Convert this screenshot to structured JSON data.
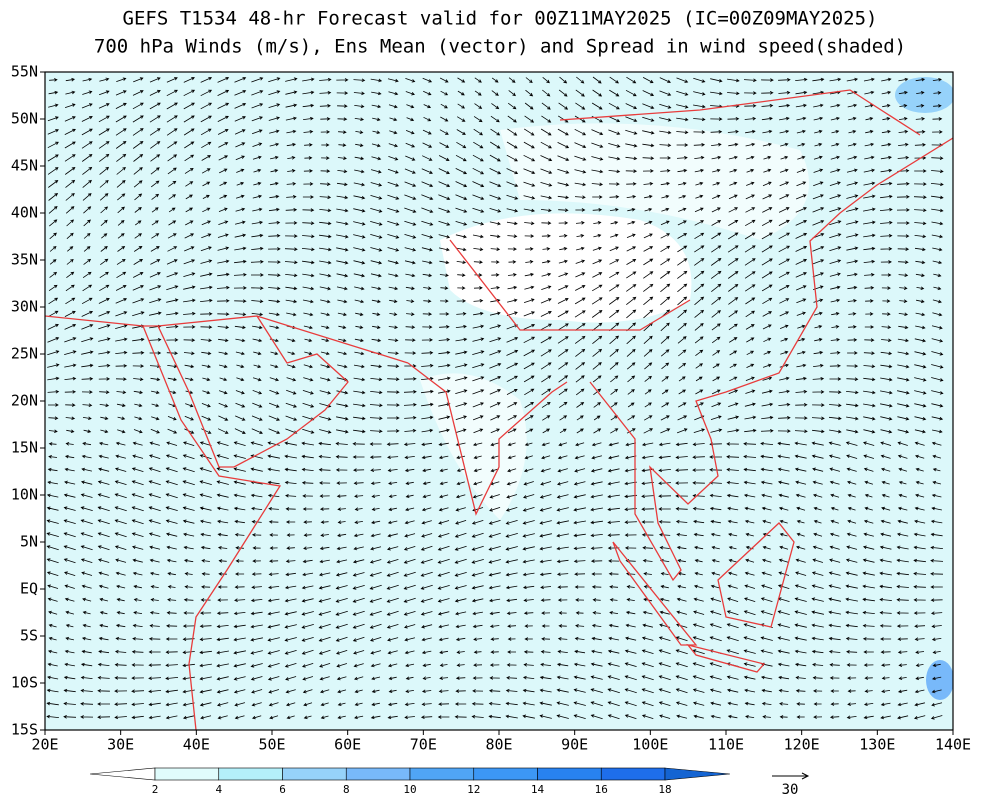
{
  "header": {
    "title": "GEFS T1534 48-hr Forecast valid for 00Z11MAY2025 (IC=00Z09MAY2025)",
    "subtitle": "700 hPa Winds (m/s), Ens Mean (vector) and Spread in wind speed(shaded)"
  },
  "map": {
    "lat_labels": [
      "55N",
      "50N",
      "45N",
      "40N",
      "35N",
      "30N",
      "25N",
      "20N",
      "15N",
      "10N",
      "5N",
      "EQ",
      "5S",
      "10S",
      "15S"
    ],
    "lon_labels": [
      "20E",
      "30E",
      "40E",
      "50E",
      "60E",
      "70E",
      "80E",
      "90E",
      "100E",
      "110E",
      "120E",
      "130E",
      "140E"
    ]
  },
  "colorbar": {
    "labels": [
      "2",
      "4",
      "6",
      "8",
      "10",
      "12",
      "14",
      "16",
      "18"
    ],
    "colors": [
      "#ffffff",
      "#e0fcfc",
      "#b4f0fa",
      "#96d2fa",
      "#78b9fa",
      "#50a5f5",
      "#3c97f5",
      "#2882f0",
      "#1e6eeb",
      "#1464d2"
    ]
  },
  "reference_vector": {
    "label": "30"
  }
}
